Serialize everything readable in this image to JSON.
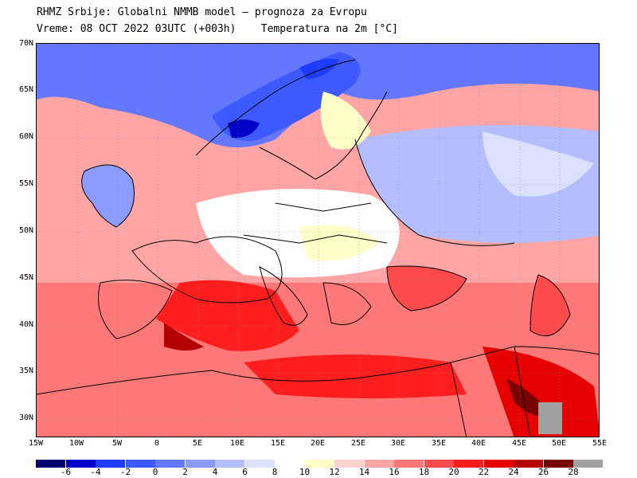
{
  "header": {
    "line1": "RHMZ Srbije: Globalni NMMB model — prognoza za Evropu",
    "line2_time": "Vreme: 08 OCT 2022 03UTC (+003h)",
    "line2_field": "Temperatura na 2m [°C]"
  },
  "axes": {
    "lat_labels": [
      "70N",
      "65N",
      "60N",
      "55N",
      "50N",
      "45N",
      "40N",
      "35N",
      "30N"
    ],
    "lon_labels": [
      "15W",
      "10W",
      "5W",
      "0",
      "5E",
      "10E",
      "15E",
      "20E",
      "25E",
      "30E",
      "35E",
      "40E",
      "45E",
      "50E",
      "55E"
    ]
  },
  "legend": {
    "colors": [
      "#00006e",
      "#0000c8",
      "#1e3cff",
      "#3c5aff",
      "#6478ff",
      "#8c9bff",
      "#b4beff",
      "#dce1ff",
      "#ffffff",
      "#ffffc8",
      "#ffd2d2",
      "#ffa5a5",
      "#ff7878",
      "#ff4b4b",
      "#ff1e1e",
      "#e60000",
      "#b40000",
      "#780000",
      "#a0a0a0"
    ],
    "labels": [
      "-6",
      "-4",
      "-2",
      "0",
      "2",
      "4",
      "6",
      "8",
      "10",
      "12",
      "14",
      "16",
      "18",
      "20",
      "22",
      "24",
      "26",
      "28"
    ]
  },
  "map_colors": {
    "sea_warm": "#ff4b4b",
    "land_cold": "#8c9bff",
    "border": "#000000"
  }
}
